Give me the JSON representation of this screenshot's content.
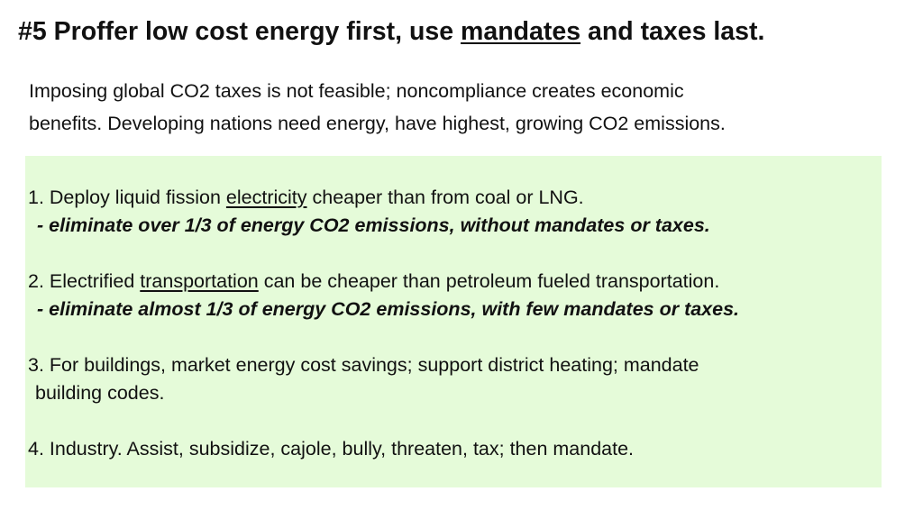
{
  "title": {
    "prefix": "#5 Proffer low cost energy first, use ",
    "underlined": "mandates",
    "suffix": " and taxes last."
  },
  "intro": {
    "line1": "Imposing global CO2 taxes is not feasible; noncompliance creates economic",
    "line2": "benefits. Developing nations need energy, have highest, growing CO2 emissions."
  },
  "items": {
    "item1": {
      "prefix": "1. Deploy liquid fission ",
      "underlined": "electricity",
      "suffix": " cheaper than from coal or LNG.",
      "sub": "- eliminate over 1/3 of energy CO2 emissions, without mandates or taxes."
    },
    "item2": {
      "prefix": "2. Electrified ",
      "underlined": "transportation",
      "suffix": " can be cheaper than petroleum fueled transportation.",
      "sub": "- eliminate almost 1/3 of energy CO2 emissions, with few mandates or taxes."
    },
    "item3": {
      "line1": "3. For buildings, market energy cost savings; support district heating; mandate",
      "line2": "building codes."
    },
    "item4": {
      "text": "4. Industry. Assist, subsidize, cajole, bully, threaten, tax; then mandate."
    }
  },
  "colors": {
    "box_background": "#e5fbd9",
    "text": "#111111"
  }
}
